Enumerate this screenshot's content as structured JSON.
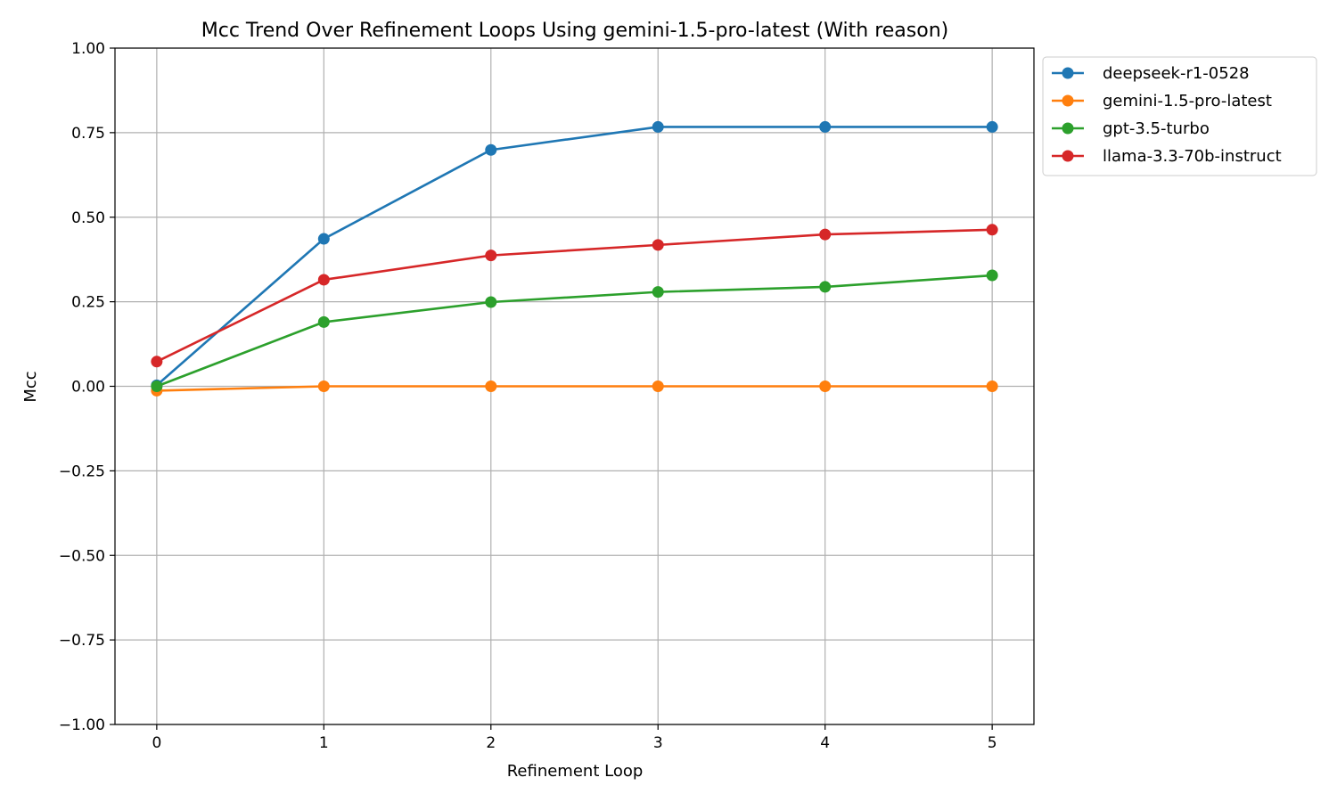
{
  "chart_data": {
    "type": "line",
    "title": "Mcc Trend Over Refinement Loops Using gemini-1.5-pro-latest (With reason)",
    "xlabel": "Refinement Loop",
    "ylabel": "Mcc",
    "x": [
      0,
      1,
      2,
      3,
      4,
      5
    ],
    "x_tick_labels": [
      "0",
      "1",
      "2",
      "3",
      "4",
      "5"
    ],
    "xlim": [
      -0.25,
      5.25
    ],
    "ylim": [
      -1.0,
      1.0
    ],
    "y_ticks": [
      -1.0,
      -0.75,
      -0.5,
      -0.25,
      0.0,
      0.25,
      0.5,
      0.75,
      1.0
    ],
    "y_tick_labels": [
      "−1.00",
      "−0.75",
      "−0.50",
      "−0.25",
      "0.00",
      "0.25",
      "0.50",
      "0.75",
      "1.00"
    ],
    "grid": true,
    "legend_position": "outside-top-right",
    "series": [
      {
        "name": "deepseek-r1-0528",
        "color": "#1f77b4",
        "values": [
          0.003,
          0.436,
          0.699,
          0.767,
          0.767,
          0.767
        ]
      },
      {
        "name": "gemini-1.5-pro-latest",
        "color": "#ff7f0e",
        "values": [
          -0.013,
          0.0,
          0.0,
          0.0,
          0.0,
          0.0
        ]
      },
      {
        "name": "gpt-3.5-turbo",
        "color": "#2ca02c",
        "values": [
          0.0,
          0.19,
          0.249,
          0.279,
          0.294,
          0.328
        ]
      },
      {
        "name": "llama-3.3-70b-instruct",
        "color": "#d62728",
        "values": [
          0.073,
          0.315,
          0.387,
          0.418,
          0.449,
          0.463
        ]
      }
    ]
  }
}
